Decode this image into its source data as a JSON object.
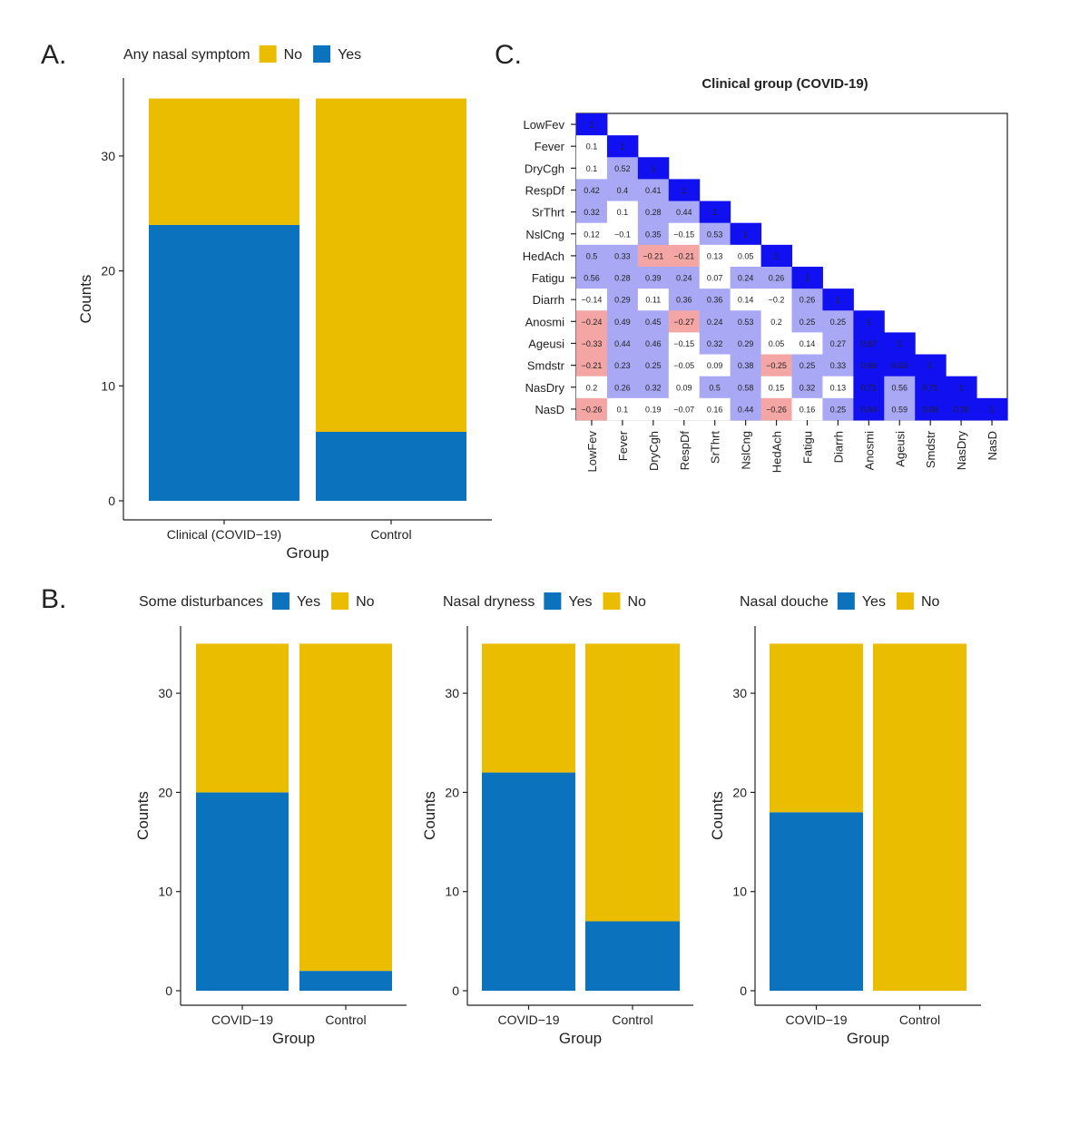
{
  "colors": {
    "yes": "#0b72bd",
    "no": "#ebbd00",
    "pos_strong": "#1010f0",
    "pos_light": "#a8a8f5",
    "neg_light": "#f4a6a4",
    "neutral": "#ffffff"
  },
  "chart_data": [
    {
      "panel": "A.",
      "type": "bar",
      "stacked": true,
      "legend_title": "Any nasal symptom",
      "legend": [
        "No",
        "Yes"
      ],
      "legend_placement": "top",
      "categories": [
        "Clinical (COVID−19)",
        "Control"
      ],
      "series": [
        {
          "name": "Yes",
          "values": [
            24,
            6
          ]
        },
        {
          "name": "No",
          "values": [
            11,
            29
          ]
        }
      ],
      "xlabel": "Group",
      "ylabel": "Counts",
      "ylim": [
        0,
        35
      ],
      "yticks": [
        0,
        10,
        20,
        30
      ]
    },
    {
      "panel": "B.",
      "type": "bar",
      "stacked": true,
      "legend_title": "Some disturbances",
      "legend": [
        "Yes",
        "No"
      ],
      "legend_placement": "top",
      "categories": [
        "COVID−19",
        "Control"
      ],
      "series": [
        {
          "name": "Yes",
          "values": [
            20,
            2
          ]
        },
        {
          "name": "No",
          "values": [
            15,
            33
          ]
        }
      ],
      "xlabel": "Group",
      "ylabel": "Counts",
      "ylim": [
        0,
        35
      ],
      "yticks": [
        0,
        10,
        20,
        30
      ]
    },
    {
      "type": "bar",
      "stacked": true,
      "legend_title": "Nasal dryness",
      "legend": [
        "Yes",
        "No"
      ],
      "legend_placement": "top",
      "categories": [
        "COVID−19",
        "Control"
      ],
      "series": [
        {
          "name": "Yes",
          "values": [
            22,
            7
          ]
        },
        {
          "name": "No",
          "values": [
            13,
            28
          ]
        }
      ],
      "xlabel": "Group",
      "ylabel": "Counts",
      "ylim": [
        0,
        35
      ],
      "yticks": [
        0,
        10,
        20,
        30
      ]
    },
    {
      "type": "bar",
      "stacked": true,
      "legend_title": "Nasal douche",
      "legend": [
        "Yes",
        "No"
      ],
      "legend_placement": "top",
      "categories": [
        "COVID−19",
        "Control"
      ],
      "series": [
        {
          "name": "Yes",
          "values": [
            18,
            0
          ]
        },
        {
          "name": "No",
          "values": [
            17,
            35
          ]
        }
      ],
      "xlabel": "Group",
      "ylabel": "Counts",
      "ylim": [
        0,
        35
      ],
      "yticks": [
        0,
        10,
        20,
        30
      ]
    },
    {
      "panel": "C.",
      "type": "heatmap",
      "title": "Clinical group (COVID-19)",
      "variables": [
        "LowFev",
        "Fever",
        "DryCgh",
        "RespDf",
        "SrThrt",
        "NslCng",
        "HedAch",
        "Fatigu",
        "Diarrh",
        "Anosmi",
        "Ageusi",
        "Smdstr",
        "NasDry",
        "NasD"
      ],
      "lower_triangle": [
        [
          1
        ],
        [
          0.1,
          1
        ],
        [
          0.1,
          0.52,
          1
        ],
        [
          0.42,
          0.4,
          0.41,
          1
        ],
        [
          0.32,
          0.1,
          0.28,
          0.44,
          1
        ],
        [
          0.12,
          -0.1,
          0.35,
          -0.15,
          0.53,
          1
        ],
        [
          0.5,
          0.33,
          -0.21,
          -0.21,
          0.13,
          0.05,
          1
        ],
        [
          0.56,
          0.28,
          0.39,
          0.24,
          0.07,
          0.24,
          0.26,
          1
        ],
        [
          -0.14,
          0.29,
          0.11,
          0.36,
          0.36,
          0.14,
          -0.2,
          0.26,
          1
        ],
        [
          -0.24,
          0.49,
          0.45,
          -0.27,
          0.24,
          0.53,
          0.2,
          0.25,
          0.25,
          1
        ],
        [
          -0.33,
          0.44,
          0.46,
          -0.15,
          0.32,
          0.29,
          0.05,
          0.14,
          0.27,
          0.87,
          1
        ],
        [
          -0.21,
          0.23,
          0.25,
          -0.05,
          0.09,
          0.38,
          -0.25,
          0.25,
          0.33,
          0.69,
          0.63,
          1
        ],
        [
          0.2,
          0.26,
          0.32,
          0.09,
          0.5,
          0.58,
          0.15,
          0.32,
          0.13,
          0.71,
          0.56,
          0.71,
          1
        ],
        [
          -0.26,
          0.1,
          0.19,
          -0.07,
          0.16,
          0.44,
          -0.26,
          0.16,
          0.25,
          0.64,
          0.59,
          0.86,
          0.76,
          1
        ]
      ]
    }
  ]
}
